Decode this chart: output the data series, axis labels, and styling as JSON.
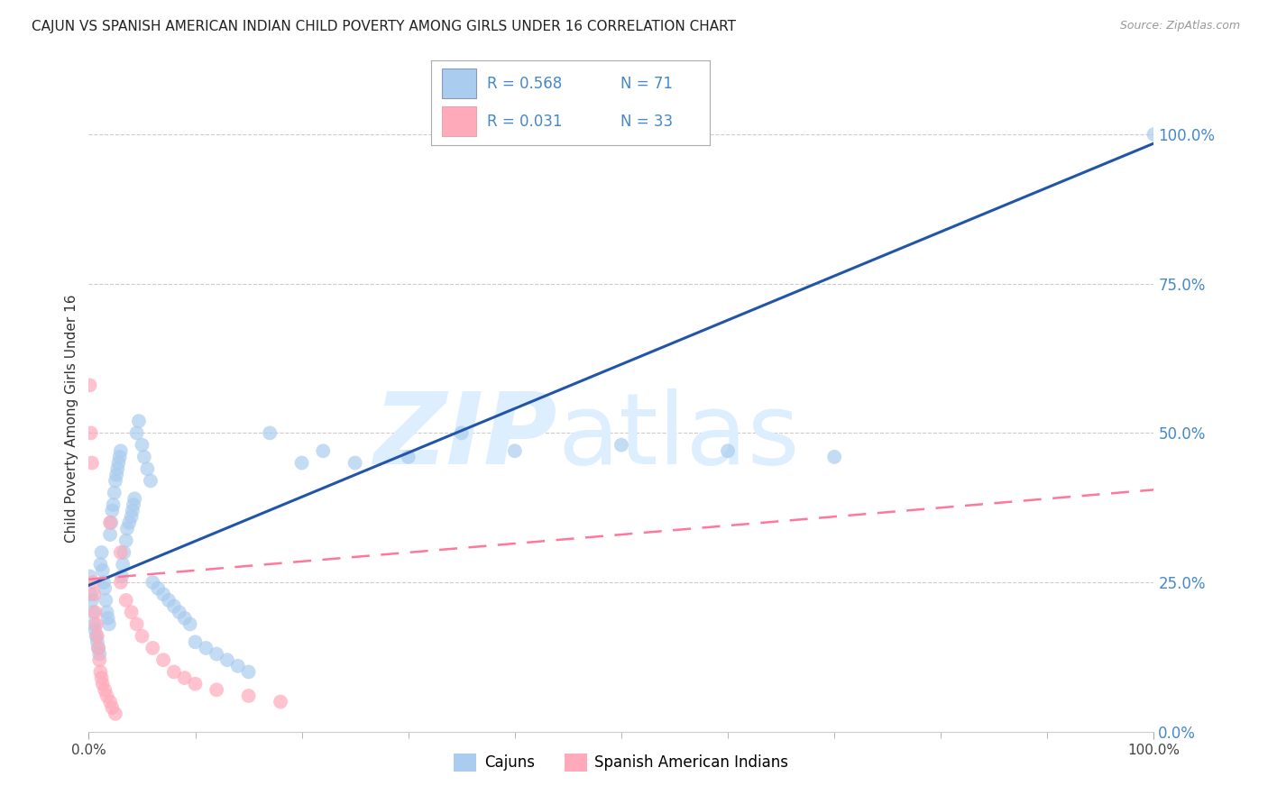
{
  "title": "CAJUN VS SPANISH AMERICAN INDIAN CHILD POVERTY AMONG GIRLS UNDER 16 CORRELATION CHART",
  "source": "Source: ZipAtlas.com",
  "ylabel": "Child Poverty Among Girls Under 16",
  "cajun_R": 0.568,
  "cajun_N": 71,
  "spanish_R": 0.031,
  "spanish_N": 33,
  "cajun_color": "#AACCEE",
  "spanish_color": "#FFAABB",
  "cajun_line_color": "#2255AA",
  "spanish_line_color": "#FF7799",
  "background_color": "#FFFFFF",
  "grid_color": "#CCCCCC",
  "watermark_color": "#DDEEFF",
  "legend_label_cajun": "Cajuns",
  "legend_label_spanish": "Spanish American Indians",
  "right_axis_color": "#4488CC",
  "legend_text_color": "#4488CC",
  "right_yticks": [
    0.0,
    0.25,
    0.5,
    0.75,
    1.0
  ],
  "right_yticklabels": [
    "0.0%",
    "25.0%",
    "50.0%",
    "75.0%",
    "100.0%"
  ],
  "xlim": [
    0.0,
    1.0
  ],
  "ylim": [
    0.0,
    1.05
  ],
  "cajun_trend_x": [
    0.0,
    1.0
  ],
  "cajun_trend_y": [
    0.245,
    0.985
  ],
  "spanish_trend_x": [
    0.0,
    1.0
  ],
  "spanish_trend_y": [
    0.255,
    0.405
  ],
  "cajun_x": [
    0.001,
    0.002,
    0.003,
    0.004,
    0.005,
    0.006,
    0.007,
    0.008,
    0.009,
    0.01,
    0.011,
    0.012,
    0.013,
    0.014,
    0.015,
    0.016,
    0.017,
    0.018,
    0.019,
    0.02,
    0.021,
    0.022,
    0.023,
    0.024,
    0.025,
    0.026,
    0.027,
    0.028,
    0.029,
    0.03,
    0.031,
    0.032,
    0.033,
    0.035,
    0.036,
    0.038,
    0.04,
    0.041,
    0.042,
    0.043,
    0.045,
    0.047,
    0.05,
    0.052,
    0.055,
    0.058,
    0.06,
    0.065,
    0.07,
    0.075,
    0.08,
    0.085,
    0.09,
    0.095,
    0.1,
    0.11,
    0.12,
    0.13,
    0.14,
    0.15,
    0.17,
    0.2,
    0.22,
    0.25,
    0.3,
    0.35,
    0.4,
    0.5,
    0.6,
    0.7,
    1.0
  ],
  "cajun_y": [
    0.26,
    0.23,
    0.22,
    0.2,
    0.18,
    0.17,
    0.16,
    0.15,
    0.14,
    0.13,
    0.28,
    0.3,
    0.27,
    0.25,
    0.24,
    0.22,
    0.2,
    0.19,
    0.18,
    0.33,
    0.35,
    0.37,
    0.38,
    0.4,
    0.42,
    0.43,
    0.44,
    0.45,
    0.46,
    0.47,
    0.26,
    0.28,
    0.3,
    0.32,
    0.34,
    0.35,
    0.36,
    0.37,
    0.38,
    0.39,
    0.5,
    0.52,
    0.48,
    0.46,
    0.44,
    0.42,
    0.25,
    0.24,
    0.23,
    0.22,
    0.21,
    0.2,
    0.19,
    0.18,
    0.15,
    0.14,
    0.13,
    0.12,
    0.11,
    0.1,
    0.5,
    0.45,
    0.47,
    0.45,
    0.46,
    0.5,
    0.47,
    0.48,
    0.47,
    0.46,
    1.0
  ],
  "spanish_x": [
    0.001,
    0.002,
    0.003,
    0.004,
    0.005,
    0.006,
    0.007,
    0.008,
    0.009,
    0.01,
    0.011,
    0.012,
    0.013,
    0.015,
    0.017,
    0.02,
    0.022,
    0.025,
    0.03,
    0.035,
    0.04,
    0.045,
    0.05,
    0.06,
    0.07,
    0.08,
    0.09,
    0.1,
    0.12,
    0.15,
    0.18,
    0.02,
    0.03
  ],
  "spanish_y": [
    0.58,
    0.5,
    0.45,
    0.25,
    0.23,
    0.2,
    0.18,
    0.16,
    0.14,
    0.12,
    0.1,
    0.09,
    0.08,
    0.07,
    0.06,
    0.05,
    0.04,
    0.03,
    0.25,
    0.22,
    0.2,
    0.18,
    0.16,
    0.14,
    0.12,
    0.1,
    0.09,
    0.08,
    0.07,
    0.06,
    0.05,
    0.35,
    0.3
  ]
}
